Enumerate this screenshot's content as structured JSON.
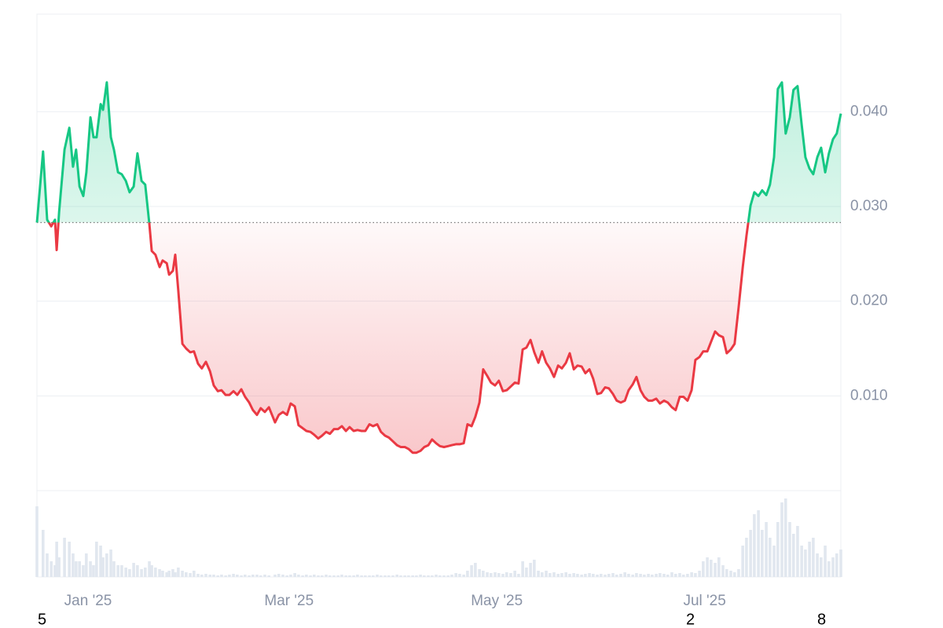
{
  "chart_data": {
    "type": "line",
    "x": [
      0,
      1.8,
      3.0,
      4.2,
      5.3,
      5.8,
      6.5,
      8.1,
      9.5,
      10.6,
      11.5,
      12.5,
      13.6,
      14.5,
      15.7,
      16.6,
      17.5,
      18.7,
      19.4,
      20.5,
      21.7,
      22.6,
      23.8,
      24.9,
      26.1,
      27.2,
      28.4,
      29.5,
      30.7,
      31.8,
      33.0,
      33.7,
      34.8,
      36.0,
      36.9,
      38.1,
      38.8,
      39.9,
      40.6,
      41.5,
      42.7,
      43.8,
      45.0,
      46.1,
      47.3,
      48.4,
      49.6,
      50.8,
      51.9,
      53.1,
      54.2,
      55.4,
      56.5,
      57.7,
      58.8,
      60.0,
      61.1,
      62.3,
      63.4,
      64.6,
      65.7,
      66.9,
      68.1,
      69.9,
      71.0,
      72.2,
      73.4,
      74.5,
      75.7,
      76.8,
      78.0,
      79.1,
      80.3,
      81.4,
      82.6,
      83.7,
      84.9,
      86.0,
      87.2,
      88.4,
      89.5,
      90.7,
      91.8,
      93.0,
      94.1,
      95.3,
      96.4,
      97.6,
      98.7,
      99.9,
      101.0,
      102.2,
      103.3,
      104.5,
      105.7,
      106.8,
      108.0,
      109.1,
      110.3,
      111.4,
      112.6,
      113.7,
      114.9,
      116.0,
      117.2,
      118.3,
      119.5,
      120.7,
      121.8,
      123.0,
      124.1,
      125.3,
      126.4,
      127.6,
      128.7,
      129.9,
      131.0,
      132.2,
      133.3,
      134.5,
      135.6,
      136.8,
      137.9,
      139.1,
      140.3,
      141.4,
      142.6,
      143.7,
      144.9,
      146.0,
      147.2,
      148.3,
      149.5,
      150.6,
      151.8,
      153.0,
      154.1,
      155.3,
      156.4,
      157.6,
      158.7,
      159.9,
      161.0,
      162.2,
      163.3,
      164.5,
      165.6,
      166.8,
      167.9,
      169.1,
      170.2,
      171.4,
      172.6,
      173.7,
      174.9,
      176.0,
      177.2,
      178.3,
      179.5,
      180.6,
      181.8,
      182.9,
      184.1,
      185.2,
      186.4,
      187.5,
      188.7,
      189.8,
      191.0,
      192.2,
      193.3,
      194.5,
      195.6,
      196.8,
      197.9,
      199.1,
      200.2,
      201.4,
      202.5,
      203.7,
      204.8,
      206.0,
      207.2,
      208.3,
      209.5,
      210.6,
      211.8,
      212.9,
      214.1,
      215.2,
      216.4,
      217.5,
      218.7,
      219.8,
      221.0,
      222.1,
      223.3,
      224.5,
      225.6,
      226.8,
      227.9,
      229.1,
      230.2,
      231.4,
      232.5,
      233.7,
      234.8,
      236.0
    ],
    "values": [
      0.0283,
      0.0358,
      0.0286,
      0.0279,
      0.0286,
      0.0254,
      0.0294,
      0.036,
      0.0383,
      0.0342,
      0.036,
      0.0321,
      0.0311,
      0.0336,
      0.0394,
      0.0373,
      0.0373,
      0.0408,
      0.0402,
      0.0431,
      0.0373,
      0.036,
      0.0336,
      0.0334,
      0.0327,
      0.0315,
      0.0321,
      0.0356,
      0.0327,
      0.0323,
      0.0282,
      0.0253,
      0.0249,
      0.0236,
      0.0243,
      0.024,
      0.0228,
      0.0232,
      0.0249,
      0.0211,
      0.0155,
      0.015,
      0.0146,
      0.0147,
      0.0134,
      0.0129,
      0.0136,
      0.0126,
      0.0111,
      0.0105,
      0.0106,
      0.0101,
      0.0101,
      0.0105,
      0.0101,
      0.0107,
      0.0099,
      0.0093,
      0.0085,
      0.008,
      0.0087,
      0.0083,
      0.0088,
      0.0072,
      0.008,
      0.0083,
      0.008,
      0.0092,
      0.0089,
      0.0069,
      0.0066,
      0.0063,
      0.0062,
      0.0059,
      0.0055,
      0.0058,
      0.0062,
      0.006,
      0.0065,
      0.0065,
      0.0068,
      0.0063,
      0.0067,
      0.0063,
      0.0064,
      0.0063,
      0.0063,
      0.007,
      0.0068,
      0.007,
      0.0062,
      0.0058,
      0.0056,
      0.0052,
      0.0048,
      0.0046,
      0.0046,
      0.0044,
      0.004,
      0.004,
      0.0042,
      0.0046,
      0.0048,
      0.0054,
      0.005,
      0.0047,
      0.0046,
      0.0047,
      0.0048,
      0.0049,
      0.0049,
      0.005,
      0.007,
      0.0068,
      0.0078,
      0.0093,
      0.0128,
      0.0121,
      0.0114,
      0.0111,
      0.0116,
      0.0105,
      0.0106,
      0.011,
      0.0114,
      0.0113,
      0.0149,
      0.0151,
      0.0159,
      0.0146,
      0.0135,
      0.0147,
      0.0135,
      0.0129,
      0.012,
      0.0132,
      0.0129,
      0.0135,
      0.0145,
      0.0128,
      0.0132,
      0.0131,
      0.0124,
      0.0128,
      0.0118,
      0.0102,
      0.0103,
      0.0109,
      0.0108,
      0.0102,
      0.0095,
      0.0093,
      0.0095,
      0.0106,
      0.0112,
      0.012,
      0.0106,
      0.0099,
      0.0095,
      0.0095,
      0.0097,
      0.0092,
      0.0095,
      0.0093,
      0.0088,
      0.0085,
      0.0099,
      0.0099,
      0.0095,
      0.0106,
      0.0138,
      0.0141,
      0.0147,
      0.0147,
      0.0157,
      0.0168,
      0.0164,
      0.0162,
      0.0145,
      0.0149,
      0.0155,
      0.0194,
      0.0236,
      0.0269,
      0.0301,
      0.0315,
      0.0311,
      0.0317,
      0.0312,
      0.0323,
      0.0352,
      0.0424,
      0.0431,
      0.0377,
      0.0394,
      0.0423,
      0.0427,
      0.0386,
      0.0352,
      0.034,
      0.0334,
      0.0352,
      0.0362,
      0.0336,
      0.0356,
      0.0371,
      0.0377,
      0.0398
    ],
    "volume": [
      90,
      60,
      30,
      20,
      15,
      45,
      25,
      50,
      45,
      30,
      20,
      20,
      15,
      30,
      20,
      15,
      45,
      40,
      25,
      30,
      35,
      20,
      15,
      15,
      12,
      10,
      18,
      15,
      10,
      12,
      20,
      15,
      12,
      10,
      8,
      6,
      8,
      10,
      6,
      12,
      8,
      6,
      5,
      8,
      4,
      3,
      4,
      3,
      3,
      2,
      3,
      2,
      3,
      4,
      3,
      2,
      3,
      2,
      3,
      3,
      2,
      3,
      2,
      3,
      4,
      3,
      2,
      3,
      5,
      3,
      2,
      3,
      2,
      3,
      2,
      2,
      3,
      2,
      2,
      2,
      3,
      2,
      2,
      2,
      3,
      2,
      2,
      2,
      2,
      3,
      2,
      2,
      2,
      2,
      3,
      2,
      2,
      2,
      2,
      2,
      3,
      2,
      2,
      2,
      3,
      2,
      2,
      2,
      3,
      5,
      4,
      3,
      8,
      15,
      18,
      10,
      8,
      6,
      5,
      6,
      5,
      4,
      6,
      5,
      8,
      4,
      20,
      12,
      18,
      22,
      8,
      6,
      8,
      5,
      6,
      4,
      5,
      6,
      4,
      5,
      4,
      3,
      4,
      5,
      4,
      3,
      4,
      3,
      4,
      5,
      3,
      4,
      6,
      4,
      3,
      5,
      4,
      3,
      4,
      3,
      4,
      5,
      4,
      3,
      6,
      4,
      5,
      3,
      4,
      6,
      5,
      8,
      20,
      25,
      22,
      18,
      25,
      15,
      10,
      8,
      6,
      10,
      40,
      50,
      60,
      80,
      85,
      60,
      70,
      50,
      40,
      70,
      95,
      100,
      70,
      55,
      65,
      40,
      35,
      45,
      50,
      30,
      25,
      40,
      20,
      25,
      30,
      35
    ],
    "volume_lim": [
      0,
      100
    ],
    "baseline": 0.0283,
    "up_color": "#16c784",
    "down_color": "#ea3943",
    "volume_color": "#e1e7ef",
    "xlim": [
      0,
      236
    ],
    "ylim": [
      0,
      0.0503
    ],
    "xticks": [
      {
        "value": 15,
        "label": "Jan '25"
      },
      {
        "value": 74,
        "label": "Mar '25"
      },
      {
        "value": 135,
        "label": "May '25"
      },
      {
        "value": 196,
        "label": "Jul '25"
      }
    ],
    "yticks": [
      {
        "value": 0.01,
        "label": "0.010"
      },
      {
        "value": 0.02,
        "label": "0.020"
      },
      {
        "value": 0.03,
        "label": "0.030"
      },
      {
        "value": 0.04,
        "label": "0.040"
      }
    ],
    "grid": true,
    "corner_labels": [
      "5",
      "2",
      "8"
    ]
  }
}
